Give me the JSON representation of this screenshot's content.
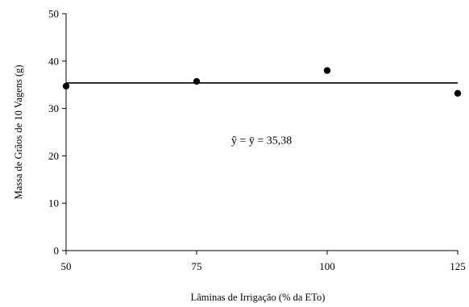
{
  "chart_data": {
    "type": "scatter",
    "xlabel": "Lâminas de Irrigação (% da ETo)",
    "ylabel": "Massa de Grãos de 10 Vagens (g)",
    "xlim": [
      50,
      125
    ],
    "ylim": [
      0,
      50
    ],
    "x_ticks": [
      50,
      75,
      100,
      125
    ],
    "y_ticks": [
      0,
      10,
      20,
      30,
      40,
      50
    ],
    "points": [
      {
        "x": 50,
        "y": 34.7
      },
      {
        "x": 75,
        "y": 35.7
      },
      {
        "x": 100,
        "y": 38.0
      },
      {
        "x": 125,
        "y": 33.2
      }
    ],
    "mean_line": {
      "y": 35.38
    },
    "annotation": "ŷ = ȳ = 35,38",
    "grid": false,
    "legend": "none"
  }
}
